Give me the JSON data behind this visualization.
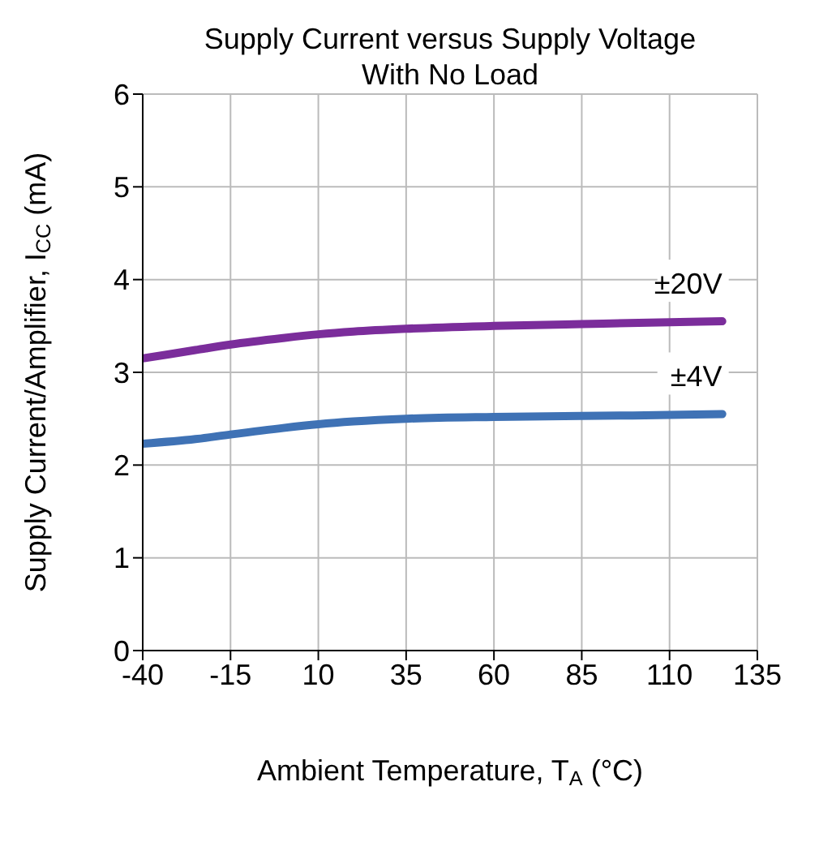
{
  "chart_data": {
    "type": "line",
    "title": "Supply Current versus Supply Voltage With No Load",
    "xlabel": "Ambient Temperature, T$_{A}$ (°C)",
    "ylabel": "Supply Current/Amplifier, I$_{CC}$ (mA)",
    "x": [
      -40,
      -25,
      -15,
      0,
      10,
      20,
      35,
      60,
      85,
      110,
      125
    ],
    "series": [
      {
        "name": "±20V",
        "color": "#7b2d9b",
        "values": [
          3.15,
          3.24,
          3.3,
          3.37,
          3.41,
          3.44,
          3.47,
          3.5,
          3.52,
          3.54,
          3.55
        ]
      },
      {
        "name": "±4V",
        "color": "#3f72b5",
        "values": [
          2.23,
          2.28,
          2.33,
          2.4,
          2.44,
          2.47,
          2.5,
          2.52,
          2.53,
          2.54,
          2.55
        ]
      }
    ],
    "xlim": [
      -40,
      135
    ],
    "xticks": [
      -40,
      -15,
      10,
      35,
      60,
      85,
      110,
      135
    ],
    "ylim": [
      0,
      6
    ],
    "yticks": [
      0,
      1,
      2,
      3,
      4,
      5,
      6
    ],
    "grid": true,
    "marker": "none",
    "line_style": "solid"
  }
}
